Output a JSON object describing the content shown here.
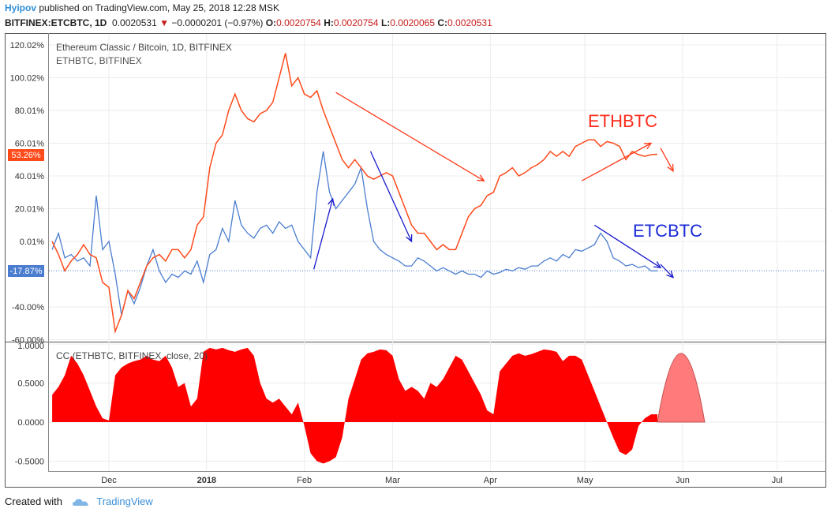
{
  "header": {
    "user": "Hyipov",
    "published_text": "published on TradingView.com, May 25, 2018 12:28 MSK",
    "symbol": "BITFINEX:ETCBTC, 1D",
    "price": "0.0020531",
    "change_arrow": "▼",
    "change": "−0.0000201 (−0.97%)",
    "o_label": "O:",
    "o_value": "0.0020754",
    "h_label": "H:",
    "h_value": "0.0020754",
    "l_label": "L:",
    "l_value": "0.0020065",
    "c_label": "C:",
    "c_value": "0.0020531"
  },
  "footer": {
    "created_with": "Created with",
    "brand": "TradingView"
  },
  "colors": {
    "eth": "#ff4a1a",
    "etc": "#4a7dd0",
    "cc": "#ff0000",
    "cc_projection": "#ff7b7b",
    "grid": "#ececec",
    "up_arrow": "#ff3a1a",
    "down_arrow": "#1a1ad0",
    "neg": "#c81e1e"
  },
  "chart_data": [
    {
      "type": "line",
      "title": "Ethereum Classic / Bitcoin, 1D, BITFINEX",
      "subtitle": "ETHBTC, BITFINEX",
      "ylabel": "",
      "y_ticks": [
        "120.02%",
        "100.02%",
        "80.01%",
        "60.01%",
        "40.01%",
        "20.01%",
        "0.01%",
        "-40.00%",
        "-60.00%"
      ],
      "ylim": [
        -60,
        120
      ],
      "x_ticks": [
        "Dec",
        "2018",
        "Feb",
        "Mar",
        "Apr",
        "May",
        "Jun",
        "Jul"
      ],
      "last_value_labels": [
        {
          "series": "ETHBTC",
          "text": "53.26%"
        },
        {
          "series": "ETCBTC",
          "text": "-17.87%"
        }
      ],
      "series": [
        {
          "name": "ETHBTC",
          "x": [
            "2017-11-13",
            "2017-11-15",
            "2017-11-17",
            "2017-11-19",
            "2017-11-21",
            "2017-11-23",
            "2017-11-25",
            "2017-11-27",
            "2017-11-29",
            "2017-12-01",
            "2017-12-03",
            "2017-12-05",
            "2017-12-07",
            "2017-12-09",
            "2017-12-11",
            "2017-12-13",
            "2017-12-15",
            "2017-12-17",
            "2017-12-19",
            "2017-12-21",
            "2017-12-23",
            "2017-12-25",
            "2017-12-27",
            "2017-12-29",
            "2017-12-31",
            "2018-01-02",
            "2018-01-04",
            "2018-01-06",
            "2018-01-08",
            "2018-01-10",
            "2018-01-12",
            "2018-01-14",
            "2018-01-16",
            "2018-01-18",
            "2018-01-20",
            "2018-01-22",
            "2018-01-24",
            "2018-01-26",
            "2018-01-28",
            "2018-01-30",
            "2018-02-01",
            "2018-02-03",
            "2018-02-05",
            "2018-02-07",
            "2018-02-09",
            "2018-02-11",
            "2018-02-13",
            "2018-02-15",
            "2018-02-17",
            "2018-02-19",
            "2018-02-21",
            "2018-02-23",
            "2018-02-25",
            "2018-02-27",
            "2018-03-01",
            "2018-03-03",
            "2018-03-05",
            "2018-03-07",
            "2018-03-09",
            "2018-03-11",
            "2018-03-13",
            "2018-03-15",
            "2018-03-17",
            "2018-03-19",
            "2018-03-21",
            "2018-03-23",
            "2018-03-25",
            "2018-03-27",
            "2018-03-29",
            "2018-03-31",
            "2018-04-02",
            "2018-04-04",
            "2018-04-06",
            "2018-04-08",
            "2018-04-10",
            "2018-04-12",
            "2018-04-14",
            "2018-04-16",
            "2018-04-18",
            "2018-04-20",
            "2018-04-22",
            "2018-04-24",
            "2018-04-26",
            "2018-04-28",
            "2018-04-30",
            "2018-05-02",
            "2018-05-04",
            "2018-05-06",
            "2018-05-08",
            "2018-05-10",
            "2018-05-12",
            "2018-05-14",
            "2018-05-16",
            "2018-05-18",
            "2018-05-20",
            "2018-05-22",
            "2018-05-24"
          ],
          "values": [
            0,
            -8,
            -18,
            -12,
            -8,
            -2,
            -8,
            -10,
            -25,
            -28,
            -55,
            -45,
            -30,
            -35,
            -25,
            -15,
            -10,
            -8,
            -12,
            -5,
            -5,
            -10,
            -5,
            10,
            15,
            45,
            60,
            65,
            80,
            90,
            80,
            75,
            73,
            78,
            80,
            85,
            100,
            115,
            95,
            100,
            90,
            88,
            92,
            80,
            70,
            60,
            50,
            45,
            50,
            45,
            40,
            38,
            40,
            42,
            40,
            30,
            20,
            10,
            5,
            5,
            0,
            -5,
            -2,
            -5,
            -5,
            5,
            15,
            20,
            22,
            28,
            30,
            40,
            42,
            45,
            40,
            42,
            45,
            47,
            50,
            55,
            52,
            55,
            52,
            58,
            60,
            62,
            62,
            58,
            61,
            60,
            58,
            50,
            55,
            53,
            52,
            53,
            53.26
          ]
        },
        {
          "name": "ETCBTC",
          "x": [
            "2017-11-13",
            "2017-11-15",
            "2017-11-17",
            "2017-11-19",
            "2017-11-21",
            "2017-11-23",
            "2017-11-25",
            "2017-11-27",
            "2017-11-29",
            "2017-12-01",
            "2017-12-03",
            "2017-12-05",
            "2017-12-07",
            "2017-12-09",
            "2017-12-11",
            "2017-12-13",
            "2017-12-15",
            "2017-12-17",
            "2017-12-19",
            "2017-12-21",
            "2017-12-23",
            "2017-12-25",
            "2017-12-27",
            "2017-12-29",
            "2017-12-31",
            "2018-01-02",
            "2018-01-04",
            "2018-01-06",
            "2018-01-08",
            "2018-01-10",
            "2018-01-12",
            "2018-01-14",
            "2018-01-16",
            "2018-01-18",
            "2018-01-20",
            "2018-01-22",
            "2018-01-24",
            "2018-01-26",
            "2018-01-28",
            "2018-01-30",
            "2018-02-01",
            "2018-02-03",
            "2018-02-05",
            "2018-02-07",
            "2018-02-09",
            "2018-02-11",
            "2018-02-13",
            "2018-02-15",
            "2018-02-17",
            "2018-02-19",
            "2018-02-21",
            "2018-02-23",
            "2018-02-25",
            "2018-02-27",
            "2018-03-01",
            "2018-03-03",
            "2018-03-05",
            "2018-03-07",
            "2018-03-09",
            "2018-03-11",
            "2018-03-13",
            "2018-03-15",
            "2018-03-17",
            "2018-03-19",
            "2018-03-21",
            "2018-03-23",
            "2018-03-25",
            "2018-03-27",
            "2018-03-29",
            "2018-03-31",
            "2018-04-02",
            "2018-04-04",
            "2018-04-06",
            "2018-04-08",
            "2018-04-10",
            "2018-04-12",
            "2018-04-14",
            "2018-04-16",
            "2018-04-18",
            "2018-04-20",
            "2018-04-22",
            "2018-04-24",
            "2018-04-26",
            "2018-04-28",
            "2018-04-30",
            "2018-05-02",
            "2018-05-04",
            "2018-05-06",
            "2018-05-08",
            "2018-05-10",
            "2018-05-12",
            "2018-05-14",
            "2018-05-16",
            "2018-05-18",
            "2018-05-20",
            "2018-05-22",
            "2018-05-24"
          ],
          "values": [
            -5,
            5,
            -10,
            -8,
            -12,
            -10,
            -15,
            28,
            -5,
            0,
            -20,
            -45,
            -30,
            -38,
            -28,
            -15,
            -5,
            -18,
            -25,
            -20,
            -22,
            -18,
            -20,
            -12,
            -25,
            -8,
            -5,
            8,
            0,
            25,
            10,
            5,
            2,
            8,
            10,
            5,
            12,
            8,
            10,
            0,
            -5,
            -10,
            30,
            55,
            30,
            20,
            25,
            30,
            35,
            45,
            20,
            0,
            -5,
            -8,
            -10,
            -12,
            -15,
            -15,
            -10,
            -12,
            -15,
            -18,
            -16,
            -18,
            -20,
            -18,
            -20,
            -20,
            -22,
            -18,
            -20,
            -19,
            -17,
            -18,
            -16,
            -17,
            -15,
            -15,
            -12,
            -10,
            -12,
            -8,
            -10,
            -5,
            -6,
            -4,
            -2,
            5,
            0,
            -10,
            -12,
            -15,
            -14,
            -16,
            -15,
            -18,
            -17.87
          ]
        }
      ],
      "annotations": [
        {
          "text": "ETHBTC",
          "color": "#ff2a1a"
        },
        {
          "text": "ETCBTC",
          "color": "#1a2ad8"
        }
      ]
    },
    {
      "type": "area",
      "title": "CC (ETHBTC, BITFINEX, close, 20)",
      "y_ticks": [
        "1.0000",
        "0.5000",
        "0.0000",
        "-0.5000"
      ],
      "ylim": [
        -0.55,
        1.0
      ],
      "x_ticks": [
        "Dec",
        "2018",
        "Feb",
        "Mar",
        "Apr",
        "May",
        "Jun",
        "Jul"
      ],
      "series": [
        {
          "name": "",
          "x": [
            "2017-11-13",
            "2017-11-15",
            "2017-11-17",
            "2017-11-19",
            "2017-11-21",
            "2017-11-23",
            "2017-11-25",
            "2017-11-27",
            "2017-11-29",
            "2017-12-01",
            "2017-12-03",
            "2017-12-05",
            "2017-12-07",
            "2017-12-09",
            "2017-12-11",
            "2017-12-13",
            "2017-12-15",
            "2017-12-17",
            "2017-12-19",
            "2017-12-21",
            "2017-12-23",
            "2017-12-25",
            "2017-12-27",
            "2017-12-29",
            "2017-12-31",
            "2018-01-02",
            "2018-01-04",
            "2018-01-06",
            "2018-01-08",
            "2018-01-10",
            "2018-01-12",
            "2018-01-14",
            "2018-01-16",
            "2018-01-18",
            "2018-01-20",
            "2018-01-22",
            "2018-01-24",
            "2018-01-26",
            "2018-01-28",
            "2018-01-30",
            "2018-02-01",
            "2018-02-03",
            "2018-02-05",
            "2018-02-07",
            "2018-02-09",
            "2018-02-11",
            "2018-02-13",
            "2018-02-15",
            "2018-02-17",
            "2018-02-19",
            "2018-02-21",
            "2018-02-23",
            "2018-02-25",
            "2018-02-27",
            "2018-03-01",
            "2018-03-03",
            "2018-03-05",
            "2018-03-07",
            "2018-03-09",
            "2018-03-11",
            "2018-03-13",
            "2018-03-15",
            "2018-03-17",
            "2018-03-19",
            "2018-03-21",
            "2018-03-23",
            "2018-03-25",
            "2018-03-27",
            "2018-03-29",
            "2018-03-31",
            "2018-04-02",
            "2018-04-04",
            "2018-04-06",
            "2018-04-08",
            "2018-04-10",
            "2018-04-12",
            "2018-04-14",
            "2018-04-16",
            "2018-04-18",
            "2018-04-20",
            "2018-04-22",
            "2018-04-24",
            "2018-04-26",
            "2018-04-28",
            "2018-04-30",
            "2018-05-02",
            "2018-05-04",
            "2018-05-06",
            "2018-05-08",
            "2018-05-10",
            "2018-05-12",
            "2018-05-14",
            "2018-05-16",
            "2018-05-18",
            "2018-05-20",
            "2018-05-22",
            "2018-05-24"
          ],
          "values": [
            0.35,
            0.45,
            0.6,
            0.85,
            0.75,
            0.6,
            0.4,
            0.2,
            0.05,
            0.02,
            0.6,
            0.7,
            0.75,
            0.78,
            0.8,
            0.85,
            0.8,
            0.78,
            0.85,
            0.7,
            0.45,
            0.5,
            0.2,
            0.3,
            0.9,
            0.95,
            0.93,
            0.95,
            0.92,
            0.9,
            0.93,
            0.95,
            0.85,
            0.5,
            0.3,
            0.25,
            0.3,
            0.2,
            0.1,
            0.25,
            -0.05,
            -0.4,
            -0.5,
            -0.53,
            -0.5,
            -0.45,
            -0.2,
            0.3,
            0.55,
            0.8,
            0.88,
            0.9,
            0.93,
            0.92,
            0.85,
            0.55,
            0.4,
            0.45,
            0.4,
            0.3,
            0.5,
            0.45,
            0.55,
            0.7,
            0.85,
            0.8,
            0.65,
            0.5,
            0.35,
            0.15,
            0.1,
            0.65,
            0.75,
            0.85,
            0.88,
            0.85,
            0.87,
            0.9,
            0.93,
            0.92,
            0.9,
            0.78,
            0.85,
            0.85,
            0.8,
            0.6,
            0.4,
            0.2,
            0.0,
            -0.2,
            -0.38,
            -0.42,
            -0.35,
            -0.05,
            0.05,
            0.1,
            0.1
          ]
        }
      ],
      "projection": {
        "x": [
          "2018-05-24",
          "2018-06-08"
        ],
        "peak": 0.88
      }
    }
  ]
}
